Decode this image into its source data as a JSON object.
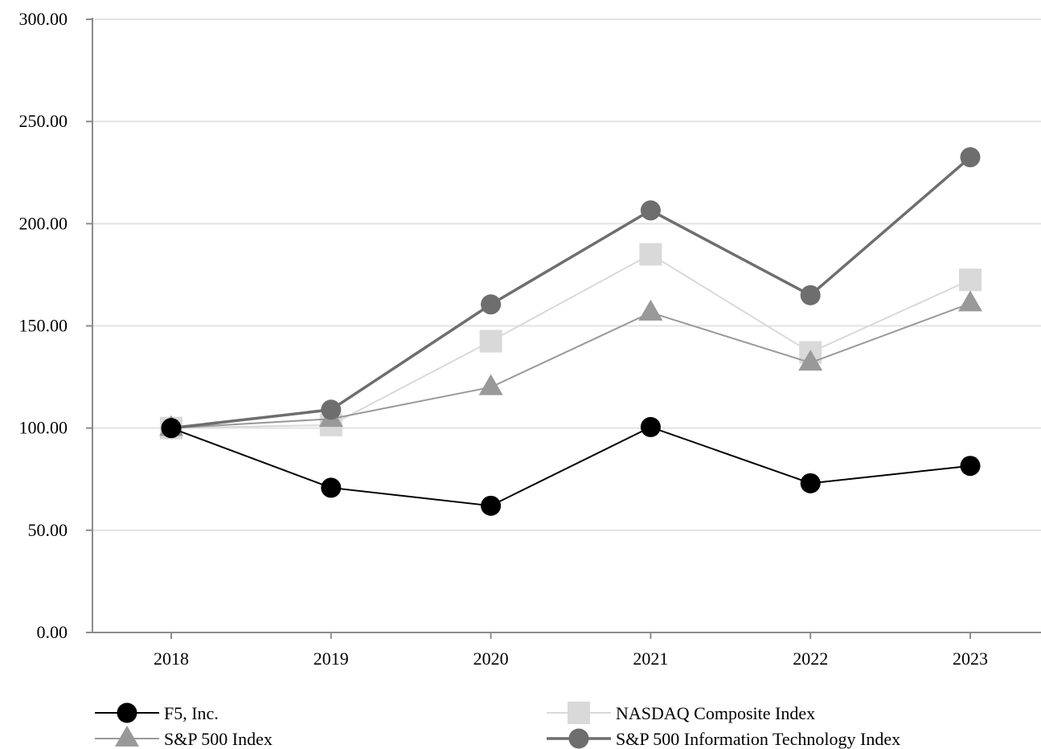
{
  "chart_data": {
    "type": "line",
    "title": "",
    "xlabel": "",
    "ylabel": "",
    "categories": [
      "2018",
      "2019",
      "2020",
      "2021",
      "2022",
      "2023"
    ],
    "ylim": [
      0,
      300
    ],
    "yticks": [
      0,
      50,
      100,
      150,
      200,
      250,
      300
    ],
    "ytick_labels": [
      "0.00",
      "50.00",
      "100.00",
      "150.00",
      "200.00",
      "250.00",
      "300.00"
    ],
    "grid": true,
    "legend_position": "bottom",
    "series": [
      {
        "name": "F5, Inc.",
        "values": [
          100.0,
          70.8,
          62.0,
          100.5,
          73.0,
          81.5
        ],
        "color": "#000000",
        "marker": "circle",
        "line_width": 2
      },
      {
        "name": "NASDAQ Composite Index",
        "values": [
          100.0,
          101.5,
          142.5,
          185.0,
          137.0,
          172.5
        ],
        "color": "#d9d9d9",
        "marker": "square",
        "line_width": 2
      },
      {
        "name": "S&P 500 Index",
        "values": [
          100.0,
          104.5,
          120.0,
          156.5,
          132.0,
          161.0
        ],
        "color": "#999999",
        "marker": "triangle",
        "line_width": 2
      },
      {
        "name": "S&P 500 Information Technology Index",
        "values": [
          100.0,
          109.0,
          160.5,
          206.5,
          165.0,
          232.5
        ],
        "color": "#6e6e6e",
        "marker": "circle",
        "line_width": 3.5
      }
    ]
  }
}
